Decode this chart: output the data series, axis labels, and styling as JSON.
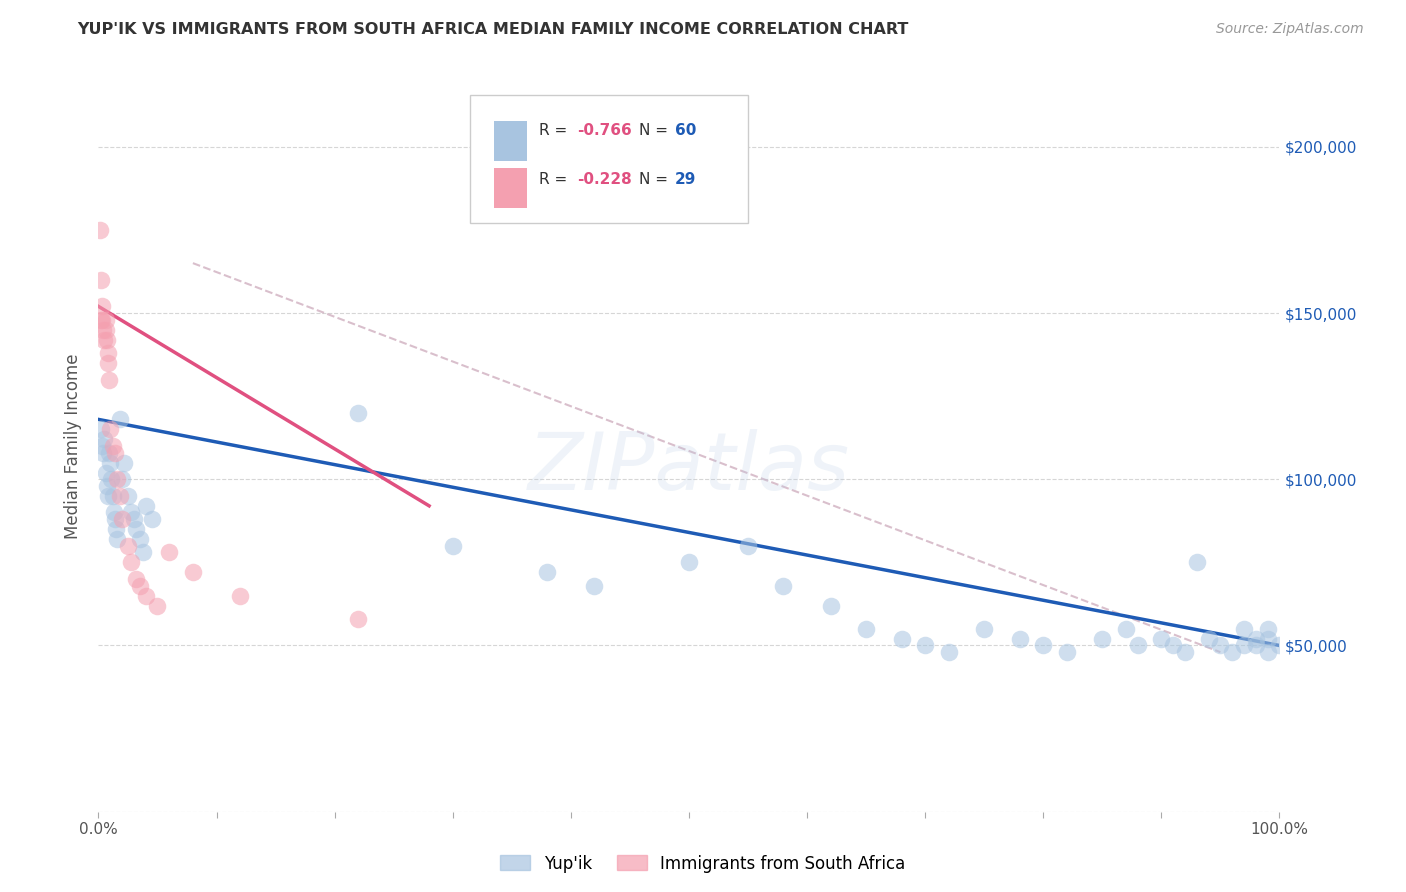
{
  "title": "YUP'IK VS IMMIGRANTS FROM SOUTH AFRICA MEDIAN FAMILY INCOME CORRELATION CHART",
  "source": "Source: ZipAtlas.com",
  "ylabel": "Median Family Income",
  "watermark": "ZIPatlas",
  "yup_ik_x": [
    0.002,
    0.003,
    0.004,
    0.005,
    0.006,
    0.007,
    0.008,
    0.009,
    0.01,
    0.011,
    0.012,
    0.013,
    0.014,
    0.015,
    0.016,
    0.018,
    0.02,
    0.022,
    0.025,
    0.028,
    0.03,
    0.032,
    0.035,
    0.038,
    0.04,
    0.045,
    0.22,
    0.3,
    0.38,
    0.42,
    0.5,
    0.55,
    0.58,
    0.62,
    0.65,
    0.68,
    0.7,
    0.72,
    0.75,
    0.78,
    0.8,
    0.82,
    0.85,
    0.87,
    0.88,
    0.9,
    0.91,
    0.92,
    0.93,
    0.94,
    0.95,
    0.96,
    0.97,
    0.97,
    0.98,
    0.98,
    0.99,
    0.99,
    0.99,
    1.0
  ],
  "yup_ik_y": [
    115000,
    110000,
    108000,
    112000,
    102000,
    98000,
    95000,
    108000,
    105000,
    100000,
    95000,
    90000,
    88000,
    85000,
    82000,
    118000,
    100000,
    105000,
    95000,
    90000,
    88000,
    85000,
    82000,
    78000,
    92000,
    88000,
    120000,
    80000,
    72000,
    68000,
    75000,
    80000,
    68000,
    62000,
    55000,
    52000,
    50000,
    48000,
    55000,
    52000,
    50000,
    48000,
    52000,
    55000,
    50000,
    52000,
    50000,
    48000,
    75000,
    52000,
    50000,
    48000,
    50000,
    55000,
    52000,
    50000,
    48000,
    55000,
    52000,
    50000
  ],
  "sa_x": [
    0.001,
    0.002,
    0.002,
    0.003,
    0.003,
    0.004,
    0.005,
    0.006,
    0.006,
    0.007,
    0.008,
    0.008,
    0.009,
    0.01,
    0.012,
    0.014,
    0.016,
    0.018,
    0.02,
    0.025,
    0.028,
    0.032,
    0.035,
    0.04,
    0.05,
    0.06,
    0.08,
    0.12,
    0.22
  ],
  "sa_y": [
    175000,
    160000,
    148000,
    148000,
    152000,
    145000,
    142000,
    148000,
    145000,
    142000,
    138000,
    135000,
    130000,
    115000,
    110000,
    108000,
    100000,
    95000,
    88000,
    80000,
    75000,
    70000,
    68000,
    65000,
    62000,
    78000,
    72000,
    65000,
    58000
  ],
  "blue_line_x": [
    0.0,
    1.0
  ],
  "blue_line_y": [
    118000,
    50000
  ],
  "pink_line_x": [
    0.0,
    0.28
  ],
  "pink_line_y": [
    152000,
    92000
  ],
  "dash_line_x": [
    0.08,
    0.95
  ],
  "dash_line_y": [
    165000,
    48000
  ],
  "yticks": [
    0,
    50000,
    100000,
    150000,
    200000
  ],
  "ytick_labels": [
    "",
    "$50,000",
    "$100,000",
    "$150,000",
    "$200,000"
  ],
  "ylim": [
    0,
    220000
  ],
  "xlim": [
    0.0,
    1.0
  ],
  "bg_color": "#ffffff",
  "grid_color": "#cccccc",
  "blue_scatter_color": "#a8c4e0",
  "pink_scatter_color": "#f4a0b0",
  "blue_line_color": "#1e5bb5",
  "pink_line_color": "#e05080",
  "dash_line_color": "#d0b0c0",
  "r_blue": "-0.766",
  "n_blue": "60",
  "r_pink": "-0.228",
  "n_pink": "29"
}
